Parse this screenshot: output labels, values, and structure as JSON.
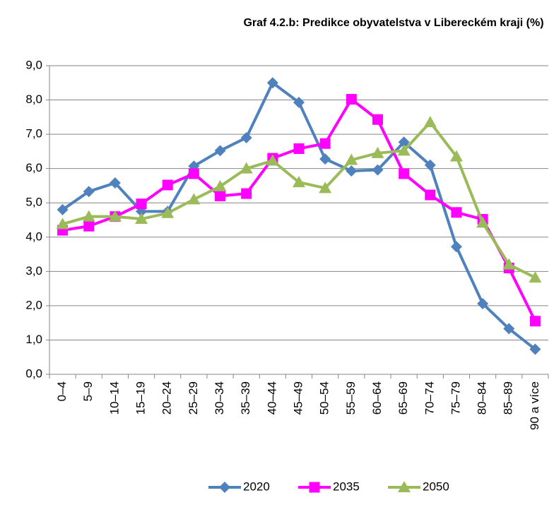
{
  "chart_data": {
    "type": "line",
    "title": "Graf 4.2.b: Predikce obyvatelstva v Libereckém kraji (%)",
    "categories": [
      "0–4",
      "5–9",
      "10–14",
      "15–19",
      "20–24",
      "25–29",
      "30–34",
      "35–39",
      "40–44",
      "45–49",
      "50–54",
      "55–59",
      "60–64",
      "65–69",
      "70–74",
      "75–79",
      "80–84",
      "85–89",
      "90 a více"
    ],
    "series": [
      {
        "name": "2020",
        "color": "#4f81bd",
        "marker": "diamond",
        "values": [
          4.8,
          5.33,
          5.58,
          4.75,
          4.75,
          6.07,
          6.52,
          6.9,
          8.5,
          7.93,
          6.28,
          5.93,
          5.96,
          6.77,
          6.1,
          3.72,
          2.06,
          1.33,
          0.73
        ]
      },
      {
        "name": "2035",
        "color": "#ff00ff",
        "marker": "square",
        "values": [
          4.2,
          4.32,
          4.6,
          4.97,
          5.52,
          5.85,
          5.2,
          5.27,
          6.3,
          6.58,
          6.73,
          8.02,
          7.43,
          5.85,
          5.23,
          4.72,
          4.52,
          3.1,
          1.55
        ]
      },
      {
        "name": "2050",
        "color": "#9bbb59",
        "marker": "triangle",
        "values": [
          4.38,
          4.6,
          4.6,
          4.53,
          4.7,
          5.1,
          5.48,
          6.0,
          6.23,
          5.6,
          5.43,
          6.25,
          6.45,
          6.52,
          7.35,
          6.35,
          4.42,
          3.2,
          2.82
        ]
      }
    ],
    "ylim": [
      0,
      9
    ],
    "yticks": [
      {
        "value": 0,
        "label": "0,0"
      },
      {
        "value": 1,
        "label": "1,0"
      },
      {
        "value": 2,
        "label": "2,0"
      },
      {
        "value": 3,
        "label": "3,0"
      },
      {
        "value": 4,
        "label": "4,0"
      },
      {
        "value": 5,
        "label": "5,0"
      },
      {
        "value": 6,
        "label": "6,0"
      },
      {
        "value": 7,
        "label": "7,0"
      },
      {
        "value": 8,
        "label": "8,0"
      },
      {
        "value": 9,
        "label": "9,0"
      }
    ],
    "grid": true,
    "legend": "bottom"
  }
}
